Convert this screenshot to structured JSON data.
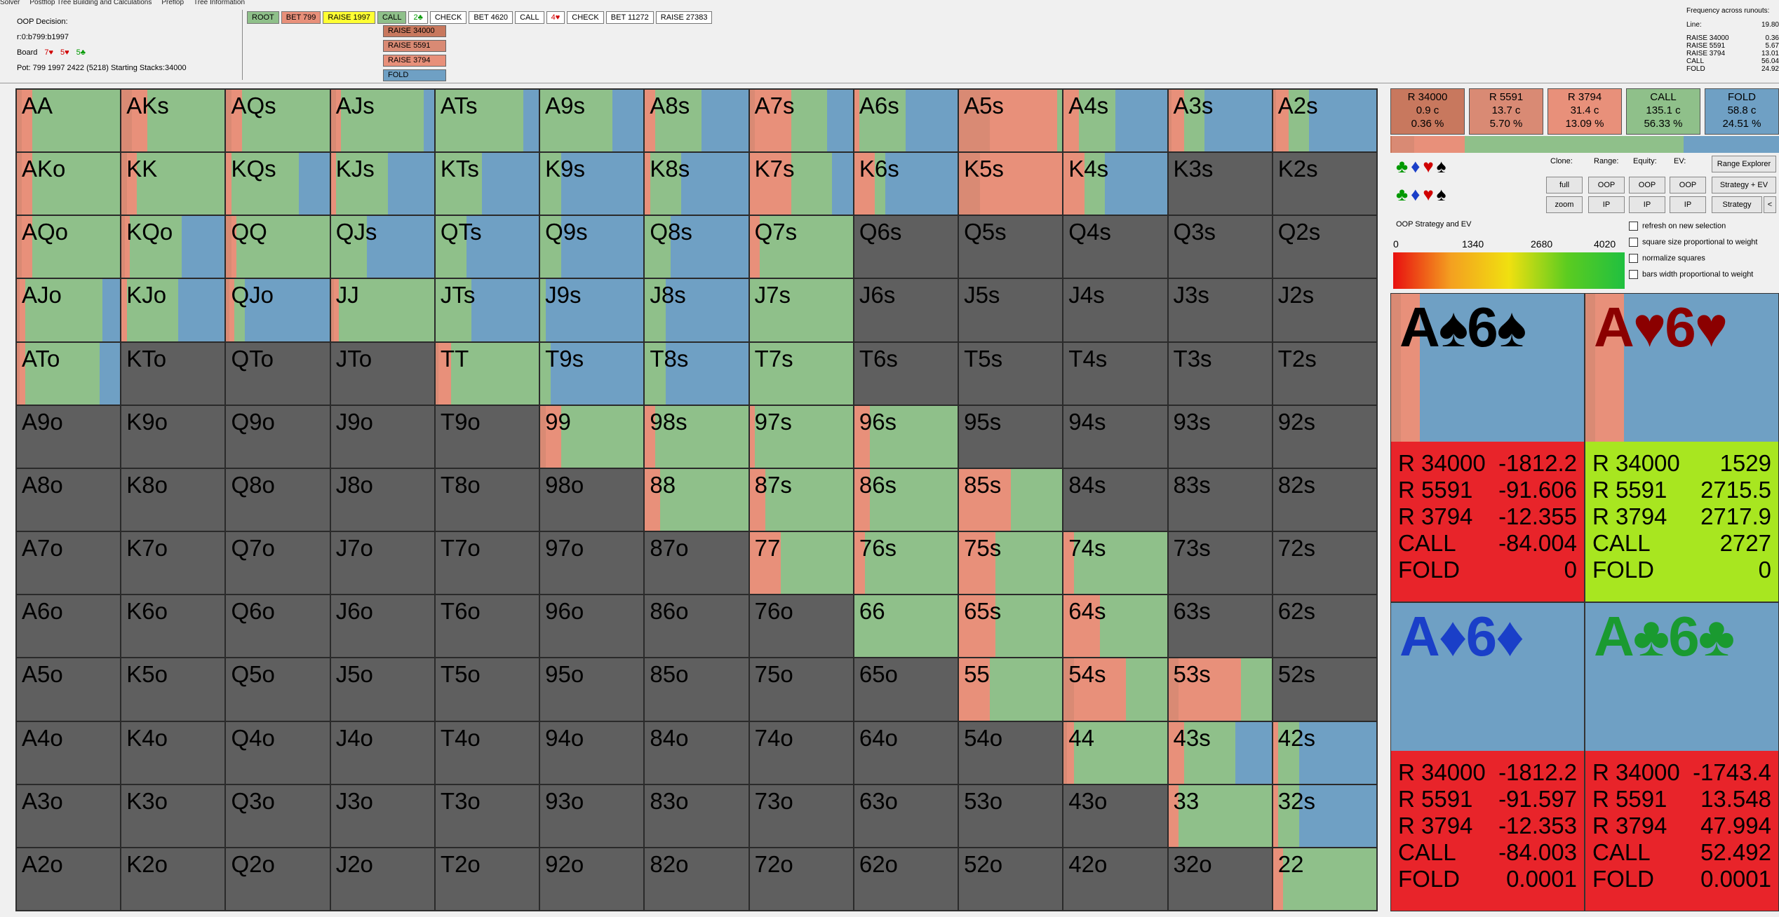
{
  "menu": [
    "Solver",
    "Postflop Tree Building and Calculations",
    "Preflop",
    "Tree Information"
  ],
  "info": {
    "decision": "OOP Decision:",
    "line": "r:0:b799:b1997",
    "board_label": "Board",
    "board_cards": [
      {
        "t": "7♥",
        "c": "#d00000"
      },
      {
        "t": "5♥",
        "c": "#d00000"
      },
      {
        "t": "5♣",
        "c": "#009900"
      }
    ],
    "pot": "Pot: 799 1997 2422 (5218) Starting Stacks:34000"
  },
  "actions": [
    {
      "label": "ROOT",
      "bg": "#8fc08a"
    },
    {
      "label": "BET 799",
      "bg": "#e8907a"
    },
    {
      "label": "RAISE 1997",
      "bg": "#ffff33"
    },
    {
      "label": "CALL",
      "bg": "#8fc08a"
    },
    {
      "label": "2♣",
      "bg": "#ffffff",
      "color": "#009900"
    },
    {
      "label": "CHECK",
      "bg": "#ffffff"
    },
    {
      "label": "BET 4620",
      "bg": "#ffffff"
    },
    {
      "label": "CALL",
      "bg": "#ffffff"
    },
    {
      "label": "4♥",
      "bg": "#ffffff",
      "color": "#d00000"
    },
    {
      "label": "CHECK",
      "bg": "#ffffff"
    },
    {
      "label": "BET 11272",
      "bg": "#ffffff"
    },
    {
      "label": "RAISE 27383",
      "bg": "#ffffff"
    }
  ],
  "options": [
    {
      "label": "RAISE 34000",
      "bg": "#c8785e"
    },
    {
      "label": "RAISE 5591",
      "bg": "#d98a74"
    },
    {
      "label": "RAISE 3794",
      "bg": "#e8907a"
    },
    {
      "label": "FOLD",
      "bg": "#6fa0c4"
    }
  ],
  "freq": {
    "title": "Frequency across runouts:",
    "line": "Line:",
    "line_val": "19.80",
    "rows": [
      {
        "n": "RAISE 34000",
        "v": "0.36"
      },
      {
        "n": "RAISE 5591",
        "v": "5.67"
      },
      {
        "n": "RAISE 3794",
        "v": "13.01"
      },
      {
        "n": "CALL",
        "v": "56.04"
      },
      {
        "n": "FOLD",
        "v": "24.92"
      }
    ]
  },
  "colors": {
    "r34000": "#c8785e",
    "r5591": "#d98a74",
    "r3794": "#e8907a",
    "call": "#8fc08a",
    "fold": "#6fa0c4",
    "empty": "#5f5f5f"
  },
  "hands": [
    [
      "AA",
      "AKs",
      "AQs",
      "AJs",
      "ATs",
      "A9s",
      "A8s",
      "A7s",
      "A6s",
      "A5s",
      "A4s",
      "A3s",
      "A2s"
    ],
    [
      "AKo",
      "KK",
      "KQs",
      "KJs",
      "KTs",
      "K9s",
      "K8s",
      "K7s",
      "K6s",
      "K5s",
      "K4s",
      "K3s",
      "K2s"
    ],
    [
      "AQo",
      "KQo",
      "QQ",
      "QJs",
      "QTs",
      "Q9s",
      "Q8s",
      "Q7s",
      "Q6s",
      "Q5s",
      "Q4s",
      "Q3s",
      "Q2s"
    ],
    [
      "AJo",
      "KJo",
      "QJo",
      "JJ",
      "JTs",
      "J9s",
      "J8s",
      "J7s",
      "J6s",
      "J5s",
      "J4s",
      "J3s",
      "J2s"
    ],
    [
      "ATo",
      "KTo",
      "QTo",
      "JTo",
      "TT",
      "T9s",
      "T8s",
      "T7s",
      "T6s",
      "T5s",
      "T4s",
      "T3s",
      "T2s"
    ],
    [
      "A9o",
      "K9o",
      "Q9o",
      "J9o",
      "T9o",
      "99",
      "98s",
      "97s",
      "96s",
      "95s",
      "94s",
      "93s",
      "92s"
    ],
    [
      "A8o",
      "K8o",
      "Q8o",
      "J8o",
      "T8o",
      "98o",
      "88",
      "87s",
      "86s",
      "85s",
      "84s",
      "83s",
      "82s"
    ],
    [
      "A7o",
      "K7o",
      "Q7o",
      "J7o",
      "T7o",
      "97o",
      "87o",
      "77",
      "76s",
      "75s",
      "74s",
      "73s",
      "72s"
    ],
    [
      "A6o",
      "K6o",
      "Q6o",
      "J6o",
      "T6o",
      "96o",
      "86o",
      "76o",
      "66",
      "65s",
      "64s",
      "63s",
      "62s"
    ],
    [
      "A5o",
      "K5o",
      "Q5o",
      "J5o",
      "T5o",
      "95o",
      "85o",
      "75o",
      "65o",
      "55",
      "54s",
      "53s",
      "52s"
    ],
    [
      "A4o",
      "K4o",
      "Q4o",
      "J4o",
      "T4o",
      "94o",
      "84o",
      "74o",
      "64o",
      "54o",
      "44",
      "43s",
      "42s"
    ],
    [
      "A3o",
      "K3o",
      "Q3o",
      "J3o",
      "T3o",
      "93o",
      "83o",
      "73o",
      "63o",
      "53o",
      "43o",
      "33",
      "32s"
    ],
    [
      "A2o",
      "K2o",
      "Q2o",
      "J2o",
      "T2o",
      "92o",
      "82o",
      "72o",
      "62o",
      "52o",
      "42o",
      "32o",
      "22"
    ]
  ],
  "strategy": {
    "AA": [
      0,
      0.05,
      0.1,
      0.85,
      0
    ],
    "AKs": [
      0,
      0.1,
      0.15,
      0.75,
      0
    ],
    "AQs": [
      0,
      0.05,
      0.1,
      0.85,
      0
    ],
    "AJs": [
      0,
      0.05,
      0.05,
      0.8,
      0.1
    ],
    "ATs": [
      0,
      0,
      0,
      0.85,
      0.15
    ],
    "A9s": [
      0,
      0,
      0,
      0.7,
      0.3
    ],
    "A8s": [
      0,
      0,
      0.1,
      0.45,
      0.45
    ],
    "A7s": [
      0,
      0.05,
      0.35,
      0.35,
      0.25
    ],
    "A6s": [
      0,
      0,
      0.05,
      0.45,
      0.5
    ],
    "A5s": [
      0,
      0.3,
      0.65,
      0.05,
      0
    ],
    "A4s": [
      0,
      0,
      0.15,
      0.35,
      0.5
    ],
    "A3s": [
      0,
      0.03,
      0.12,
      0.2,
      0.65
    ],
    "A2s": [
      0,
      0.03,
      0.12,
      0.2,
      0.65
    ],
    "AKo": [
      0,
      0.05,
      0.1,
      0.85,
      0
    ],
    "KK": [
      0,
      0.05,
      0.1,
      0.85,
      0
    ],
    "KQs": [
      0,
      0,
      0.05,
      0.65,
      0.3
    ],
    "KJs": [
      0,
      0,
      0.05,
      0.5,
      0.45
    ],
    "KTs": [
      0,
      0,
      0,
      0.45,
      0.55
    ],
    "K9s": [
      0,
      0,
      0,
      0.2,
      0.8
    ],
    "K8s": [
      0,
      0,
      0.05,
      0.3,
      0.65
    ],
    "K7s": [
      0,
      0,
      0.4,
      0.4,
      0.2
    ],
    "K6s": [
      0,
      0,
      0.2,
      0.1,
      0.7
    ],
    "K5s": [
      0,
      0.2,
      0.8,
      0,
      0
    ],
    "K4s": [
      0,
      0,
      0.2,
      0.2,
      0.6
    ],
    "AQo": [
      0,
      0.05,
      0.1,
      0.85,
      0
    ],
    "KQo": [
      0,
      0.03,
      0.05,
      0.5,
      0.42
    ],
    "QQ": [
      0,
      0.05,
      0.05,
      0.9,
      0
    ],
    "QJs": [
      0,
      0,
      0,
      0.35,
      0.65
    ],
    "QTs": [
      0,
      0,
      0,
      0.3,
      0.7
    ],
    "Q9s": [
      0,
      0,
      0,
      0.2,
      0.8
    ],
    "Q8s": [
      0,
      0,
      0,
      0.25,
      0.75
    ],
    "Q7s": [
      0,
      0,
      0.1,
      0.9,
      0
    ],
    "AJo": [
      0,
      0.03,
      0.05,
      0.75,
      0.17
    ],
    "KJo": [
      0,
      0,
      0.05,
      0.5,
      0.45
    ],
    "QJo": [
      0,
      0.03,
      0.05,
      0.1,
      0.82
    ],
    "JJ": [
      0,
      0.03,
      0.05,
      0.92,
      0
    ],
    "JTs": [
      0,
      0,
      0,
      0.35,
      0.65
    ],
    "J9s": [
      0,
      0,
      0,
      0.05,
      0.95
    ],
    "J8s": [
      0,
      0,
      0,
      0.2,
      0.8
    ],
    "J7s": [
      0,
      0,
      0,
      1,
      0
    ],
    "ATo": [
      0,
      0.03,
      0.05,
      0.72,
      0.2
    ],
    "TT": [
      0,
      0.03,
      0.12,
      0.85,
      0
    ],
    "T9s": [
      0,
      0,
      0,
      0.1,
      0.9
    ],
    "T8s": [
      0,
      0,
      0,
      0.2,
      0.8
    ],
    "T7s": [
      0,
      0,
      0,
      1,
      0
    ],
    "99": [
      0,
      0.05,
      0.15,
      0.8,
      0
    ],
    "98s": [
      0,
      0,
      0.1,
      0.9,
      0
    ],
    "97s": [
      0,
      0,
      0.05,
      0.95,
      0
    ],
    "96s": [
      0,
      0,
      0.15,
      0.85,
      0
    ],
    "88": [
      0,
      0,
      0.15,
      0.85,
      0
    ],
    "87s": [
      0,
      0,
      0.15,
      0.85,
      0
    ],
    "86s": [
      0,
      0,
      0.15,
      0.85,
      0
    ],
    "85s": [
      0,
      0,
      0.5,
      0.5,
      0
    ],
    "77": [
      0,
      0,
      0.3,
      0.7,
      0
    ],
    "76s": [
      0,
      0,
      0.1,
      0.9,
      0
    ],
    "75s": [
      0,
      0,
      0.35,
      0.65,
      0
    ],
    "74s": [
      0,
      0,
      0.1,
      0.9,
      0
    ],
    "66": [
      0,
      0,
      0,
      1,
      0
    ],
    "65s": [
      0,
      0,
      0.35,
      0.65,
      0
    ],
    "64s": [
      0,
      0,
      0.35,
      0.65,
      0
    ],
    "55": [
      0,
      0,
      0.3,
      0.7,
      0
    ],
    "54s": [
      0,
      0.1,
      0.5,
      0.4,
      0
    ],
    "53s": [
      0,
      0.1,
      0.6,
      0.3,
      0
    ],
    "44": [
      0,
      0.03,
      0.07,
      0.9,
      0
    ],
    "43s": [
      0,
      0,
      0.15,
      0.5,
      0.35
    ],
    "42s": [
      0,
      0,
      0.05,
      0.2,
      0.75
    ],
    "33": [
      0,
      0,
      0.1,
      0.9,
      0
    ],
    "32s": [
      0,
      0,
      0.05,
      0.2,
      0.75
    ],
    "22": [
      0,
      0,
      0.1,
      0.9,
      0
    ]
  },
  "summary": [
    {
      "name": "R 34000",
      "freq": "0.9 c",
      "pct": "0.36 %",
      "bg": "#c8785e"
    },
    {
      "name": "R 5591",
      "freq": "13.7 c",
      "pct": "5.70 %",
      "bg": "#d98a74"
    },
    {
      "name": "R 3794",
      "freq": "31.4 c",
      "pct": "13.09 %",
      "bg": "#e8907a"
    },
    {
      "name": "CALL",
      "freq": "135.1 c",
      "pct": "56.33 %",
      "bg": "#8fc08a"
    },
    {
      "name": "FOLD",
      "freq": "58.8 c",
      "pct": "24.51 %",
      "bg": "#6fa0c4"
    }
  ],
  "summary_bar": [
    0.004,
    0.057,
    0.131,
    0.563,
    0.245
  ],
  "controls": {
    "clone": "Clone:",
    "range": "Range:",
    "equity": "Equity:",
    "ev": "EV:",
    "range_explorer": "Range Explorer",
    "full": "full",
    "zoom": "zoom",
    "oop": "OOP",
    "ip": "IP",
    "strategy_ev": "Strategy + EV",
    "strategy": "Strategy",
    "lt": "<",
    "ev_title": "OOP Strategy and EV",
    "ticks": [
      "0",
      "1340",
      "2680",
      "4020"
    ],
    "checks": [
      "refresh on new selection",
      "square size proportional to weight",
      "normalize squares",
      "bars width proportional to weight"
    ]
  },
  "combos": [
    {
      "title": "A♠6♠",
      "color": "#000000",
      "ev_bg": "#e8242a",
      "strat": [
        0,
        0.05,
        0.1,
        0,
        0.85
      ],
      "evs": [
        {
          "n": "R 34000",
          "v": "-1812.2"
        },
        {
          "n": "R 5591",
          "v": "-91.606"
        },
        {
          "n": "R 3794",
          "v": "-12.355"
        },
        {
          "n": "CALL",
          "v": "-84.004"
        },
        {
          "n": "FOLD",
          "v": "0"
        }
      ]
    },
    {
      "title": "A♥6♥",
      "color": "#8b0000",
      "ev_bg": "#a8e620",
      "strat": [
        0,
        0.05,
        0.15,
        0,
        0.8
      ],
      "evs": [
        {
          "n": "R 34000",
          "v": "1529"
        },
        {
          "n": "R 5591",
          "v": "2715.5"
        },
        {
          "n": "R 3794",
          "v": "2717.9"
        },
        {
          "n": "CALL",
          "v": "2727"
        },
        {
          "n": "FOLD",
          "v": "0"
        }
      ]
    },
    {
      "title": "A♦6♦",
      "color": "#1a3fc8",
      "ev_bg": "#e8242a",
      "strat": [
        0,
        0,
        0,
        0,
        1
      ],
      "evs": [
        {
          "n": "R 34000",
          "v": "-1812.2"
        },
        {
          "n": "R 5591",
          "v": "-91.597"
        },
        {
          "n": "R 3794",
          "v": "-12.353"
        },
        {
          "n": "CALL",
          "v": "-84.003"
        },
        {
          "n": "FOLD",
          "v": "0.0001"
        }
      ]
    },
    {
      "title": "A♣6♣",
      "color": "#1a9a30",
      "ev_bg": "#e8242a",
      "strat": [
        0,
        0,
        0,
        0,
        1
      ],
      "evs": [
        {
          "n": "R 34000",
          "v": "-1743.4"
        },
        {
          "n": "R 5591",
          "v": "13.548"
        },
        {
          "n": "R 3794",
          "v": "47.994"
        },
        {
          "n": "CALL",
          "v": "52.492"
        },
        {
          "n": "FOLD",
          "v": "0.0001"
        }
      ]
    }
  ]
}
